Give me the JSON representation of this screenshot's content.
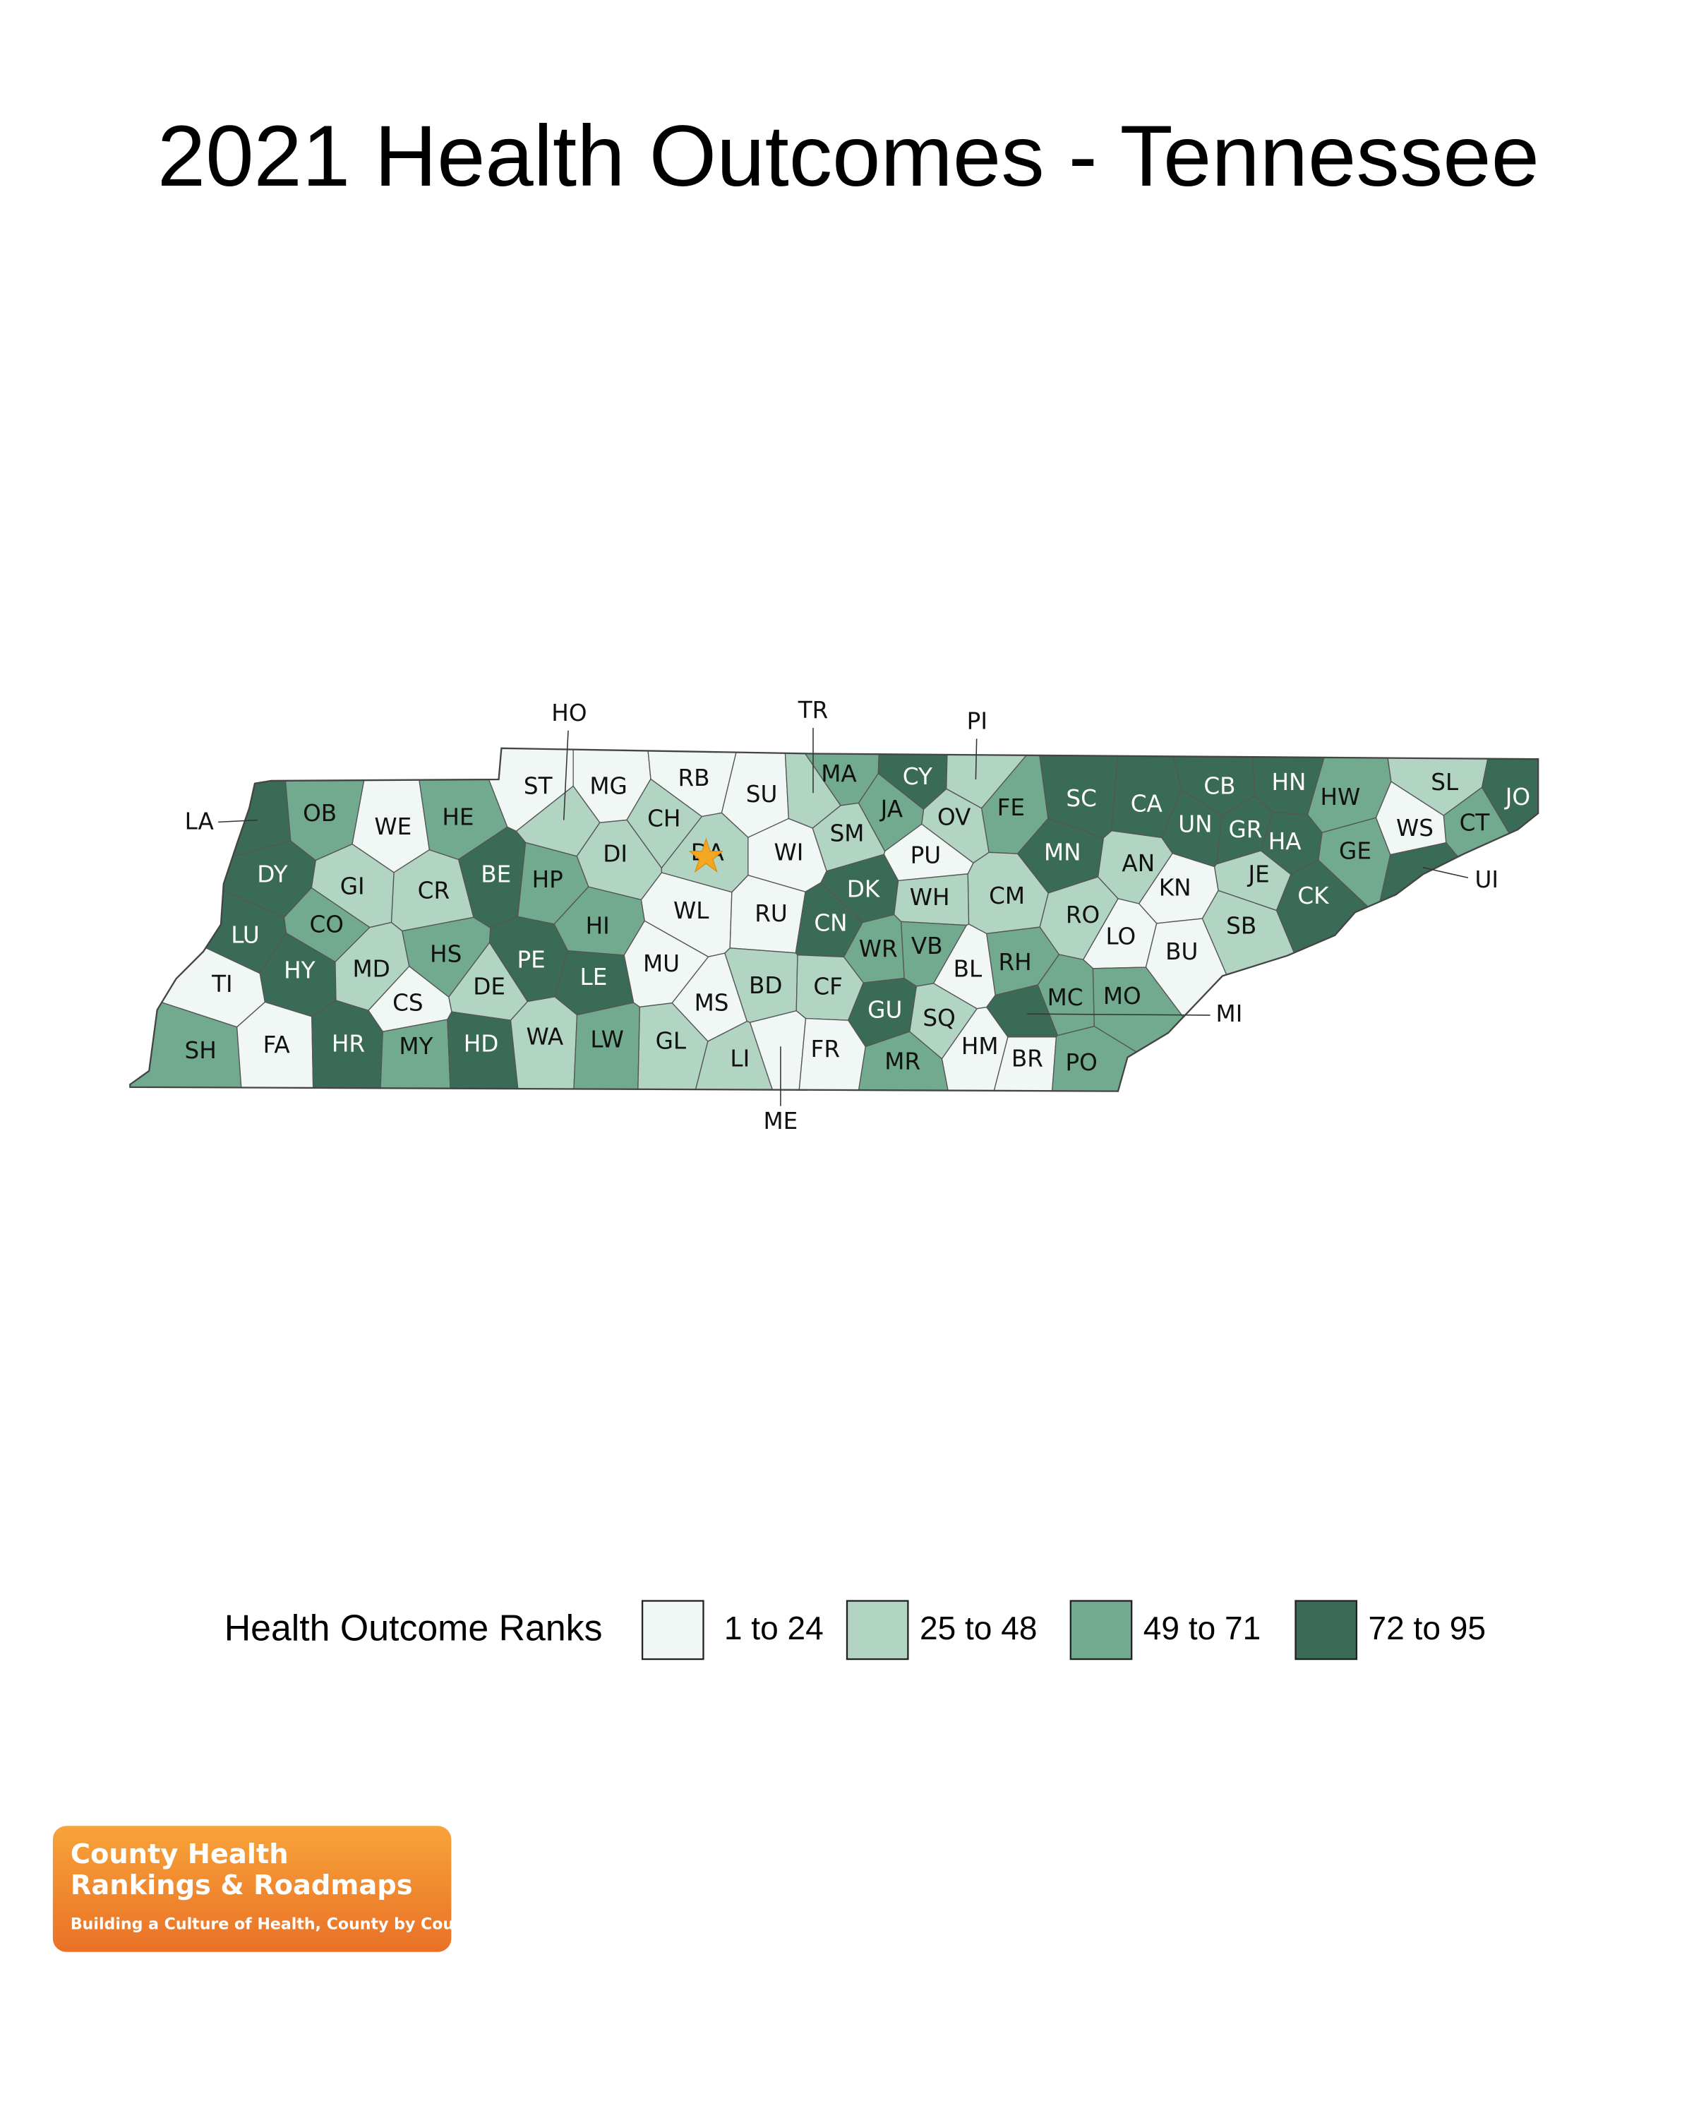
{
  "title": "2021 Health Outcomes - Tennessee",
  "counties": [
    {
      "label": "LA",
      "color": "#3a6b56"
    },
    {
      "label": "OB",
      "color": "#72aa8f"
    },
    {
      "label": "WE",
      "color": "#f1f7f4"
    },
    {
      "label": "HE",
      "color": "#72aa8f"
    },
    {
      "label": "ST",
      "color": "#f1f7f4"
    },
    {
      "label": "MG",
      "color": "#f1f7f4"
    },
    {
      "label": "RB",
      "color": "#f1f7f4"
    },
    {
      "label": "SU",
      "color": "#f1f7f4"
    },
    {
      "label": "MA",
      "color": "#72aa8f"
    },
    {
      "label": "CY",
      "color": "#3a6b56"
    },
    {
      "label": "PI",
      "color": "#b1d4c3"
    },
    {
      "label": "FE",
      "color": "#72aa8f"
    },
    {
      "label": "SC",
      "color": "#3a6b56"
    },
    {
      "label": "CA",
      "color": "#3a6b56"
    },
    {
      "label": "CB",
      "color": "#3a6b56"
    },
    {
      "label": "HN",
      "color": "#3a6b56"
    },
    {
      "label": "HW",
      "color": "#72aa8f"
    },
    {
      "label": "SL",
      "color": "#b1d4c3"
    },
    {
      "label": "JO",
      "color": "#3a6b56"
    },
    {
      "label": "CT",
      "color": "#72aa8f"
    },
    {
      "label": "WS",
      "color": "#f1f7f4"
    },
    {
      "label": "UI",
      "color": "#3a6b56"
    },
    {
      "label": "GE",
      "color": "#72aa8f"
    },
    {
      "label": "HA",
      "color": "#3a6b56"
    },
    {
      "label": "GR",
      "color": "#3a6b56"
    },
    {
      "label": "UN",
      "color": "#3a6b56"
    },
    {
      "label": "JE",
      "color": "#b1d4c3"
    },
    {
      "label": "CK",
      "color": "#3a6b56"
    },
    {
      "label": "SB",
      "color": "#b1d4c3"
    },
    {
      "label": "KN",
      "color": "#f1f7f4"
    },
    {
      "label": "AN",
      "color": "#b1d4c3"
    },
    {
      "label": "MN",
      "color": "#3a6b56"
    },
    {
      "label": "LO",
      "color": "#f1f7f4"
    },
    {
      "label": "BU",
      "color": "#f1f7f4"
    },
    {
      "label": "RO",
      "color": "#b1d4c3"
    },
    {
      "label": "MC",
      "color": "#72aa8f"
    },
    {
      "label": "MO",
      "color": "#72aa8f"
    },
    {
      "label": "MI",
      "color": "#3a6b56"
    },
    {
      "label": "RH",
      "color": "#72aa8f"
    },
    {
      "label": "BL",
      "color": "#f1f7f4"
    },
    {
      "label": "HM",
      "color": "#f1f7f4"
    },
    {
      "label": "BR",
      "color": "#f1f7f4"
    },
    {
      "label": "PO",
      "color": "#72aa8f"
    },
    {
      "label": "MR",
      "color": "#72aa8f"
    },
    {
      "label": "SQ",
      "color": "#b1d4c3"
    },
    {
      "label": "GU",
      "color": "#3a6b56"
    },
    {
      "label": "CM",
      "color": "#b1d4c3"
    },
    {
      "label": "WH",
      "color": "#b1d4c3"
    },
    {
      "label": "VB",
      "color": "#72aa8f"
    },
    {
      "label": "WR",
      "color": "#72aa8f"
    },
    {
      "label": "DK",
      "color": "#3a6b56"
    },
    {
      "label": "CN",
      "color": "#3a6b56"
    },
    {
      "label": "PU",
      "color": "#f1f7f4"
    },
    {
      "label": "OV",
      "color": "#b1d4c3"
    },
    {
      "label": "JA",
      "color": "#72aa8f"
    },
    {
      "label": "SM",
      "color": "#b1d4c3"
    },
    {
      "label": "TR",
      "color": "#b1d4c3"
    },
    {
      "label": "WI",
      "color": "#f1f7f4"
    },
    {
      "label": "DA",
      "color": "#b1d4c3"
    },
    {
      "label": "CH",
      "color": "#b1d4c3"
    },
    {
      "label": "HO",
      "color": "#b1d4c3"
    },
    {
      "label": "DI",
      "color": "#b1d4c3"
    },
    {
      "label": "HP",
      "color": "#72aa8f"
    },
    {
      "label": "BE",
      "color": "#3a6b56"
    },
    {
      "label": "CR",
      "color": "#b1d4c3"
    },
    {
      "label": "GI",
      "color": "#b1d4c3"
    },
    {
      "label": "DY",
      "color": "#3a6b56"
    },
    {
      "label": "LU",
      "color": "#3a6b56"
    },
    {
      "label": "CO",
      "color": "#72aa8f"
    },
    {
      "label": "TI",
      "color": "#f1f7f4"
    },
    {
      "label": "HY",
      "color": "#3a6b56"
    },
    {
      "label": "MD",
      "color": "#b1d4c3"
    },
    {
      "label": "HS",
      "color": "#72aa8f"
    },
    {
      "label": "DE",
      "color": "#b1d4c3"
    },
    {
      "label": "CS",
      "color": "#f1f7f4"
    },
    {
      "label": "PE",
      "color": "#3a6b56"
    },
    {
      "label": "HI",
      "color": "#72aa8f"
    },
    {
      "label": "LE",
      "color": "#3a6b56"
    },
    {
      "label": "WL",
      "color": "#f1f7f4"
    },
    {
      "label": "RU",
      "color": "#f1f7f4"
    },
    {
      "label": "MU",
      "color": "#f1f7f4"
    },
    {
      "label": "BD",
      "color": "#b1d4c3"
    },
    {
      "label": "CF",
      "color": "#b1d4c3"
    },
    {
      "label": "MS",
      "color": "#f1f7f4"
    },
    {
      "label": "SH",
      "color": "#72aa8f"
    },
    {
      "label": "FA",
      "color": "#f1f7f4"
    },
    {
      "label": "HR",
      "color": "#3a6b56"
    },
    {
      "label": "MY",
      "color": "#72aa8f"
    },
    {
      "label": "HD",
      "color": "#3a6b56"
    },
    {
      "label": "WA",
      "color": "#b1d4c3"
    },
    {
      "label": "LW",
      "color": "#72aa8f"
    },
    {
      "label": "GL",
      "color": "#b1d4c3"
    },
    {
      "label": "LI",
      "color": "#b1d4c3"
    },
    {
      "label": "ME",
      "color": "#f1f7f4"
    },
    {
      "label": "FR",
      "color": "#f1f7f4"
    }
  ],
  "legend": {
    "title": "Health Outcome Ranks",
    "items": [
      {
        "label": "1 to 24",
        "color": "#f1f7f4"
      },
      {
        "label": "25 to 48",
        "color": "#b1d4c3"
      },
      {
        "label": "49 to 71",
        "color": "#72aa8f"
      },
      {
        "label": "72 to 95",
        "color": "#3a6b56"
      }
    ]
  },
  "logo": {
    "line1": "County Health",
    "line2": "Rankings & Roadmaps",
    "tagline": "Building a Culture of Health, County by County"
  }
}
